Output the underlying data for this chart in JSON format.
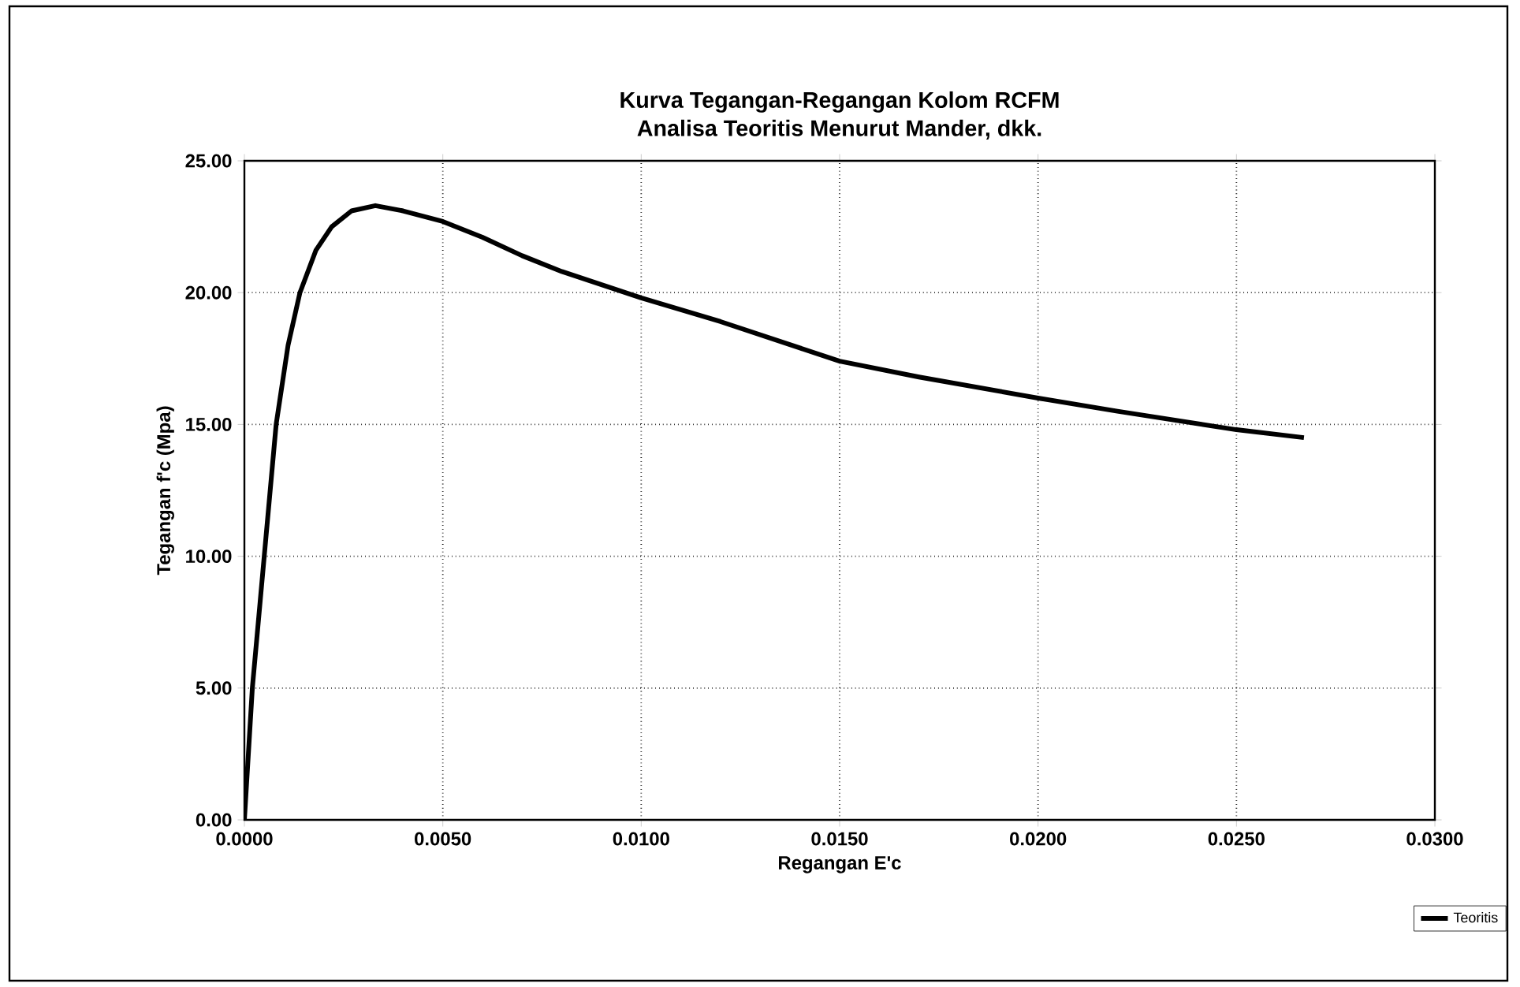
{
  "chart_data": {
    "type": "line",
    "title": "Kurva Tegangan-Regangan Kolom RCFM",
    "subtitle": "Analisa Teoritis Menurut Mander, dkk.",
    "xlabel": "Regangan E'c",
    "ylabel": "Tegangan f'c (Mpa)",
    "x": [
      0,
      0.0001,
      0.0002,
      0.00035,
      0.0005,
      0.0008,
      0.0011,
      0.0014,
      0.0018,
      0.0022,
      0.0027,
      0.0033,
      0.004,
      0.005,
      0.006,
      0.007,
      0.008,
      0.009,
      0.01,
      0.012,
      0.014,
      0.015,
      0.017,
      0.02,
      0.022,
      0.025,
      0.0267
    ],
    "series": [
      {
        "name": "Teoritis",
        "color": "#000000",
        "values": [
          0,
          2.5,
          5,
          7.5,
          10,
          15,
          18,
          20,
          21.6,
          22.5,
          23.1,
          23.3,
          23.1,
          22.7,
          22.1,
          21.4,
          20.8,
          20.3,
          19.8,
          18.9,
          17.9,
          17.4,
          16.8,
          16.0,
          15.5,
          14.8,
          14.5
        ]
      }
    ],
    "xlim": [
      0,
      0.03
    ],
    "ylim": [
      0,
      25
    ],
    "xticks": [
      {
        "value": 0,
        "label": "0.0000"
      },
      {
        "value": 0.005,
        "label": "0.0050"
      },
      {
        "value": 0.01,
        "label": "0.0100"
      },
      {
        "value": 0.015,
        "label": "0.0150"
      },
      {
        "value": 0.02,
        "label": "0.0200"
      },
      {
        "value": 0.025,
        "label": "0.0250"
      },
      {
        "value": 0.03,
        "label": "0.0300"
      }
    ],
    "yticks": [
      {
        "value": 0,
        "label": "0.00"
      },
      {
        "value": 5,
        "label": "5.00"
      },
      {
        "value": 10,
        "label": "10.00"
      },
      {
        "value": 15,
        "label": "15.00"
      },
      {
        "value": 20,
        "label": "20.00"
      },
      {
        "value": 25,
        "label": "25.00"
      }
    ],
    "grid": true,
    "legend": "bottom right",
    "marker": "none",
    "line_style": "solid"
  }
}
